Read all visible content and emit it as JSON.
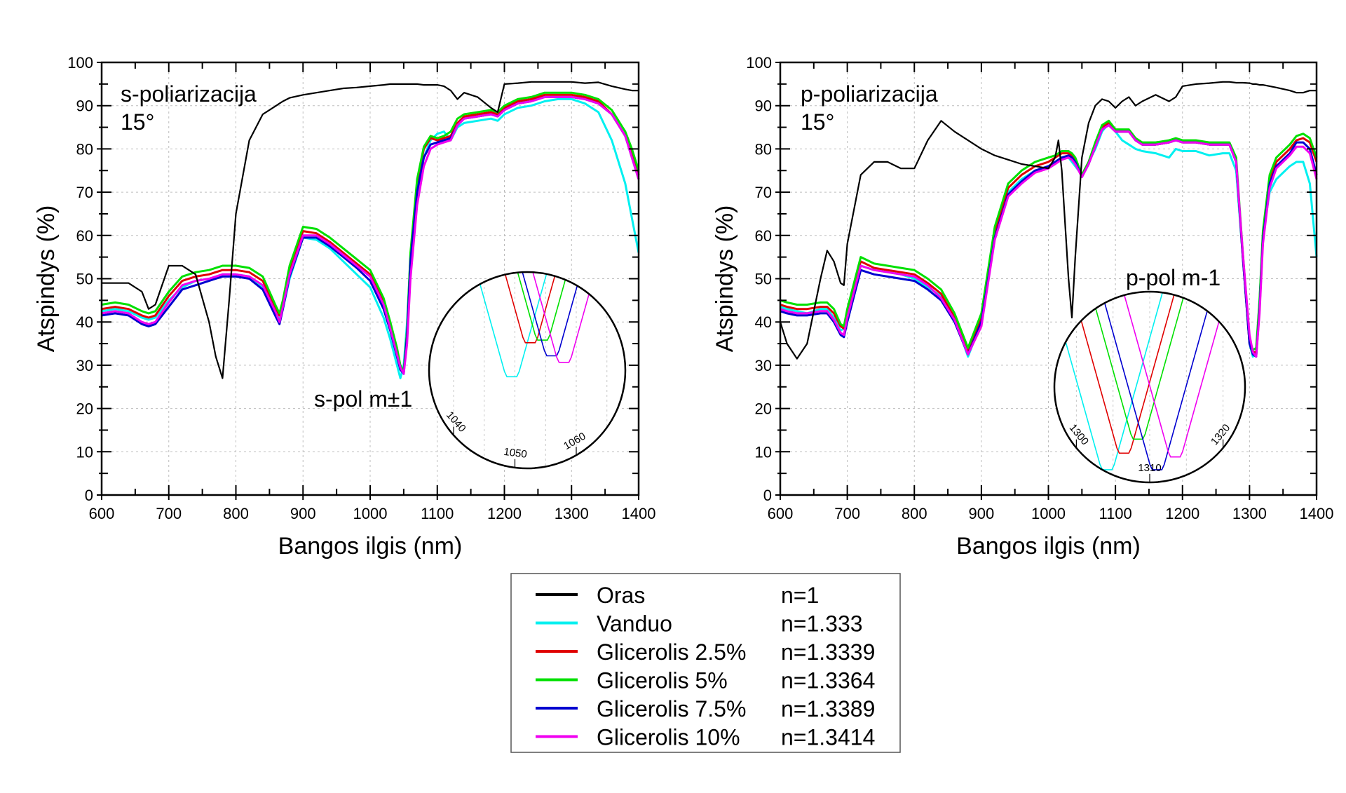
{
  "chart_data": [
    {
      "type": "line",
      "id": "s-pol",
      "title": "",
      "annotation": [
        "s-poliarizacija",
        "15°"
      ],
      "xlabel": "Bangos ilgis (nm)",
      "ylabel": "Atspindys (%)",
      "xlim": [
        600,
        1400
      ],
      "ylim": [
        0,
        100
      ],
      "xticks": [
        600,
        700,
        800,
        900,
        1000,
        1100,
        1200,
        1300,
        1400
      ],
      "yticks": [
        0,
        10,
        20,
        30,
        40,
        50,
        60,
        70,
        80,
        90,
        100
      ],
      "grid": true,
      "x": [
        600,
        620,
        640,
        660,
        670,
        680,
        700,
        720,
        740,
        760,
        770,
        780,
        790,
        800,
        820,
        840,
        860,
        865,
        870,
        880,
        900,
        920,
        940,
        960,
        980,
        1000,
        1020,
        1030,
        1040,
        1045,
        1050,
        1055,
        1060,
        1070,
        1080,
        1090,
        1100,
        1110,
        1120,
        1130,
        1140,
        1160,
        1180,
        1190,
        1200,
        1220,
        1240,
        1260,
        1280,
        1300,
        1320,
        1340,
        1360,
        1380,
        1390,
        1400
      ],
      "series": [
        {
          "name": "Oras",
          "color": "#000000",
          "values": [
            49,
            49,
            49,
            47,
            43,
            44,
            53,
            53,
            51,
            40,
            32,
            27,
            45,
            65,
            82,
            88,
            90,
            90.5,
            91,
            91.8,
            92.5,
            93,
            93.5,
            94,
            94.2,
            94.5,
            94.8,
            95,
            95,
            95,
            95,
            95,
            95,
            95,
            94.8,
            94.8,
            94.8,
            94.5,
            93.5,
            91.5,
            93,
            92,
            89.5,
            88.5,
            95,
            95.2,
            95.5,
            95.5,
            95.5,
            95.5,
            95.2,
            95.4,
            94.5,
            93.8,
            93.5,
            93.5
          ]
        },
        {
          "name": "Vanduo",
          "color": "#00f0f0",
          "values": [
            42.5,
            43,
            42.5,
            41,
            40.5,
            41,
            45,
            48,
            49.5,
            50,
            50.5,
            51,
            51,
            51,
            50.5,
            48,
            42,
            40.5,
            43,
            50,
            59.5,
            59,
            57,
            54,
            51,
            48,
            41,
            36,
            30,
            27,
            30,
            40,
            55,
            70,
            78,
            82,
            83.5,
            84,
            82,
            85,
            86,
            86.5,
            87,
            86.5,
            88,
            89.5,
            90,
            91,
            91.5,
            91.5,
            90.5,
            88.5,
            82,
            72,
            64,
            56
          ]
        },
        {
          "name": "Glicerolis 2.5%",
          "color": "#e00000",
          "values": [
            43,
            43.5,
            43,
            41.5,
            41,
            41.5,
            46,
            49.5,
            50.5,
            51,
            51.5,
            52,
            52,
            52,
            51.5,
            49.5,
            43,
            41.5,
            44,
            52,
            61,
            60.5,
            58.5,
            56,
            53.5,
            51,
            44.5,
            39,
            33,
            29.5,
            28.5,
            38,
            55,
            72,
            80,
            82.5,
            82,
            82.5,
            83,
            86,
            87.5,
            88,
            88.5,
            88,
            89.5,
            91,
            91.5,
            92.5,
            92.5,
            92.5,
            92,
            91,
            88,
            83,
            79,
            74
          ]
        },
        {
          "name": "Glicerolis 5%",
          "color": "#00e000",
          "values": [
            44,
            44.5,
            44,
            42.5,
            42,
            42.5,
            47,
            50.5,
            51.5,
            52,
            52.5,
            53,
            53,
            53,
            52.5,
            50.5,
            43.5,
            42,
            45,
            53,
            62,
            61.5,
            59.5,
            57,
            54.5,
            52,
            45.5,
            40,
            34,
            30,
            28.5,
            38,
            56,
            73,
            80.5,
            83,
            82.5,
            83,
            84,
            87,
            88,
            88.5,
            89,
            88.5,
            90,
            91.5,
            92,
            93,
            93,
            93,
            92.5,
            91.5,
            89,
            84,
            80,
            75
          ]
        },
        {
          "name": "Glicerolis 7.5%",
          "color": "#0000d0",
          "values": [
            41.5,
            42,
            41.5,
            39.5,
            39,
            39.5,
            43.5,
            47.5,
            48.5,
            49.5,
            50,
            50.5,
            50.5,
            50.5,
            50,
            47.5,
            41,
            39.5,
            43,
            50.5,
            59.5,
            59.5,
            57.5,
            55,
            52.5,
            49.5,
            43,
            38,
            32,
            29,
            28,
            37,
            54,
            70,
            78,
            81,
            81.5,
            82,
            82.5,
            85.5,
            87,
            87.5,
            88,
            87.5,
            89,
            90.5,
            91,
            92,
            92,
            92,
            91.5,
            90.5,
            88,
            83,
            78,
            73
          ]
        },
        {
          "name": "Glicerolis 10%",
          "color": "#f000f0",
          "values": [
            42,
            42.5,
            42,
            40,
            39.5,
            40,
            44.5,
            48.5,
            49.5,
            50,
            50.5,
            51,
            51,
            51,
            50.5,
            48.5,
            42,
            40,
            43.5,
            51,
            60,
            60,
            58,
            55.5,
            53,
            50.5,
            44,
            38.5,
            32.5,
            29.5,
            28,
            35,
            50,
            67,
            76,
            80,
            81,
            81.5,
            82,
            85.5,
            87,
            87.5,
            88,
            87.5,
            89,
            90.5,
            91,
            92,
            92,
            92,
            91.5,
            90.5,
            88,
            83,
            78,
            73
          ]
        }
      ],
      "inset": {
        "label": "s-pol m±1",
        "xticks": [
          1040,
          1050,
          1060
        ],
        "xlim": [
          1036,
          1068
        ],
        "ylim": [
          20,
          35
        ],
        "series_minima": [
          {
            "name": "Vanduo",
            "x": 1049.5,
            "y": 27.0
          },
          {
            "name": "Glicerolis 2.5%",
            "x": 1052.5,
            "y": 29.6
          },
          {
            "name": "Glicerolis 5%",
            "x": 1054.5,
            "y": 29.8
          },
          {
            "name": "Glicerolis 7.5%",
            "x": 1056.0,
            "y": 28.6
          },
          {
            "name": "Glicerolis 10%",
            "x": 1058.0,
            "y": 28.1
          }
        ]
      }
    },
    {
      "type": "line",
      "id": "p-pol",
      "title": "",
      "annotation": [
        "p-poliarizacija",
        "15°"
      ],
      "xlabel": "Bangos ilgis (nm)",
      "ylabel": "Atspindys (%)",
      "xlim": [
        600,
        1400
      ],
      "ylim": [
        0,
        100
      ],
      "xticks": [
        600,
        700,
        800,
        900,
        1000,
        1100,
        1200,
        1300,
        1400
      ],
      "yticks": [
        0,
        10,
        20,
        30,
        40,
        50,
        60,
        70,
        80,
        90,
        100
      ],
      "grid": true,
      "x": [
        600,
        610,
        625,
        640,
        660,
        670,
        680,
        690,
        695,
        700,
        720,
        740,
        760,
        780,
        800,
        820,
        840,
        860,
        880,
        900,
        920,
        940,
        960,
        980,
        1000,
        1010,
        1015,
        1020,
        1030,
        1035,
        1040,
        1050,
        1060,
        1070,
        1080,
        1090,
        1100,
        1110,
        1120,
        1130,
        1140,
        1160,
        1180,
        1190,
        1200,
        1220,
        1240,
        1260,
        1270,
        1280,
        1290,
        1300,
        1305,
        1310,
        1315,
        1320,
        1330,
        1340,
        1360,
        1370,
        1380,
        1390,
        1400
      ],
      "series": [
        {
          "name": "Oras",
          "color": "#000000",
          "values": [
            40,
            35,
            31.5,
            35,
            50,
            56.5,
            54,
            49,
            48.5,
            58,
            74,
            77,
            77,
            75.5,
            75.5,
            82,
            86.5,
            84,
            82,
            80,
            78.5,
            77.5,
            76.5,
            76,
            75.5,
            78,
            82,
            75,
            50,
            41,
            55,
            78,
            86,
            90,
            91.5,
            91,
            89.5,
            91,
            92,
            90,
            91,
            92.5,
            91,
            92,
            94.5,
            95,
            95.2,
            95.5,
            95.5,
            95.3,
            95.3,
            95.2,
            95,
            95,
            94.8,
            94.8,
            94.5,
            94.2,
            93.5,
            93,
            93,
            93.5,
            93.5
          ]
        },
        {
          "name": "Vanduo",
          "color": "#00f0f0",
          "values": [
            43.5,
            43,
            42.5,
            42,
            43,
            43,
            41,
            38,
            38.5,
            42,
            53,
            52,
            51.5,
            51,
            50,
            48,
            46,
            41,
            32,
            40,
            60,
            70,
            73,
            75,
            76,
            77,
            77.5,
            78,
            78,
            77,
            76,
            74,
            77,
            80,
            84,
            86,
            84,
            82,
            81,
            80,
            79.5,
            79,
            78,
            80,
            79.5,
            79.5,
            78.5,
            79,
            79,
            75,
            55,
            35,
            32,
            33,
            45,
            60,
            70,
            73,
            76,
            77,
            77,
            72,
            55
          ]
        },
        {
          "name": "Glicerolis 2.5%",
          "color": "#e00000",
          "values": [
            44,
            43.5,
            43,
            43,
            43.5,
            43.5,
            42,
            39,
            38.5,
            42,
            54,
            52.5,
            52,
            51.5,
            51,
            49,
            46.5,
            41,
            33,
            41,
            61,
            71,
            74,
            76,
            77,
            78,
            78.5,
            79,
            79,
            78.5,
            77,
            74,
            77,
            81,
            85,
            86,
            84,
            84,
            84,
            82,
            81,
            81,
            81.5,
            82,
            81.5,
            81.5,
            81,
            81,
            81,
            77,
            55,
            35,
            33,
            33,
            44,
            60,
            73,
            77,
            80,
            82,
            82.5,
            81.5,
            77
          ]
        },
        {
          "name": "Glicerolis 5%",
          "color": "#00e000",
          "values": [
            45,
            44.5,
            44,
            44,
            44.5,
            44.5,
            43,
            39.5,
            39,
            43,
            55,
            53.5,
            53,
            52.5,
            52,
            50,
            47.5,
            42,
            34,
            42,
            62,
            72,
            75,
            77,
            78,
            78.5,
            79,
            79.5,
            79.5,
            79,
            78,
            74,
            77,
            81.5,
            85.5,
            86.5,
            84.5,
            84.5,
            84.5,
            82.5,
            81.5,
            81.5,
            82,
            82.5,
            82,
            82,
            81.5,
            81.5,
            81.5,
            78,
            56,
            36,
            33.5,
            34,
            45,
            61,
            74,
            78,
            81,
            83,
            83.5,
            82.5,
            78
          ]
        },
        {
          "name": "Glicerolis 7.5%",
          "color": "#0000d0",
          "values": [
            42.5,
            42,
            41.5,
            41.5,
            42,
            42,
            40,
            37,
            36.5,
            40,
            52,
            51,
            50.5,
            50,
            49.5,
            47.5,
            45,
            40,
            32.5,
            40,
            59.5,
            69.5,
            72.5,
            75,
            76,
            77,
            77.5,
            78,
            78.5,
            78,
            77,
            73.5,
            76.5,
            80.5,
            84.5,
            85.5,
            84,
            84,
            84,
            82,
            81,
            81,
            81.5,
            82,
            81.5,
            81.5,
            81,
            81,
            81,
            77,
            55,
            35,
            32.5,
            32,
            43,
            59,
            72,
            76,
            79,
            81.5,
            81.5,
            80,
            74
          ]
        },
        {
          "name": "Glicerolis 10%",
          "color": "#f000f0",
          "values": [
            43,
            42.5,
            42,
            42,
            42.5,
            42.5,
            40.5,
            37.5,
            37,
            41,
            53,
            52,
            51.5,
            51,
            50.5,
            48.5,
            45.5,
            40.5,
            32.5,
            39,
            59,
            69,
            72,
            74.5,
            75.5,
            76.5,
            77,
            77.5,
            78,
            77.5,
            76.5,
            73.5,
            76.5,
            80.5,
            84.5,
            85.5,
            84,
            84,
            84,
            82,
            81,
            81,
            81.5,
            82,
            81.5,
            81.5,
            81,
            81,
            81,
            77,
            56,
            37,
            33,
            32,
            42,
            58,
            71,
            75.5,
            78.5,
            80.5,
            80.5,
            79,
            73
          ]
        }
      ],
      "inset": {
        "label": "p-pol m-1",
        "xticks": [
          1300,
          1310,
          1320
        ],
        "xlim": [
          1297,
          1323
        ],
        "ylim": [
          30,
          45
        ],
        "series_minima": [
          {
            "name": "Vanduo",
            "x": 1304.2,
            "y": 31.0
          },
          {
            "name": "Glicerolis 2.5%",
            "x": 1306.5,
            "y": 32.3
          },
          {
            "name": "Glicerolis 5%",
            "x": 1308.4,
            "y": 33.4
          },
          {
            "name": "Glicerolis 7.5%",
            "x": 1311.0,
            "y": 31.0
          },
          {
            "name": "Glicerolis 10%",
            "x": 1313.5,
            "y": 32.0
          }
        ]
      }
    }
  ],
  "legend": {
    "placement": "bottom-center",
    "items": [
      {
        "label": "Oras",
        "n": "n=1",
        "color": "#000000"
      },
      {
        "label": "Vanduo",
        "n": "n=1.333",
        "color": "#00f0f0"
      },
      {
        "label": "Glicerolis 2.5%",
        "n": "n=1.3339",
        "color": "#e00000"
      },
      {
        "label": "Glicerolis 5%",
        "n": "n=1.3364",
        "color": "#00e000"
      },
      {
        "label": "Glicerolis 7.5%",
        "n": "n=1.3389",
        "color": "#0000d0"
      },
      {
        "label": "Glicerolis 10%",
        "n": "n=1.3414",
        "color": "#f000f0"
      }
    ]
  }
}
